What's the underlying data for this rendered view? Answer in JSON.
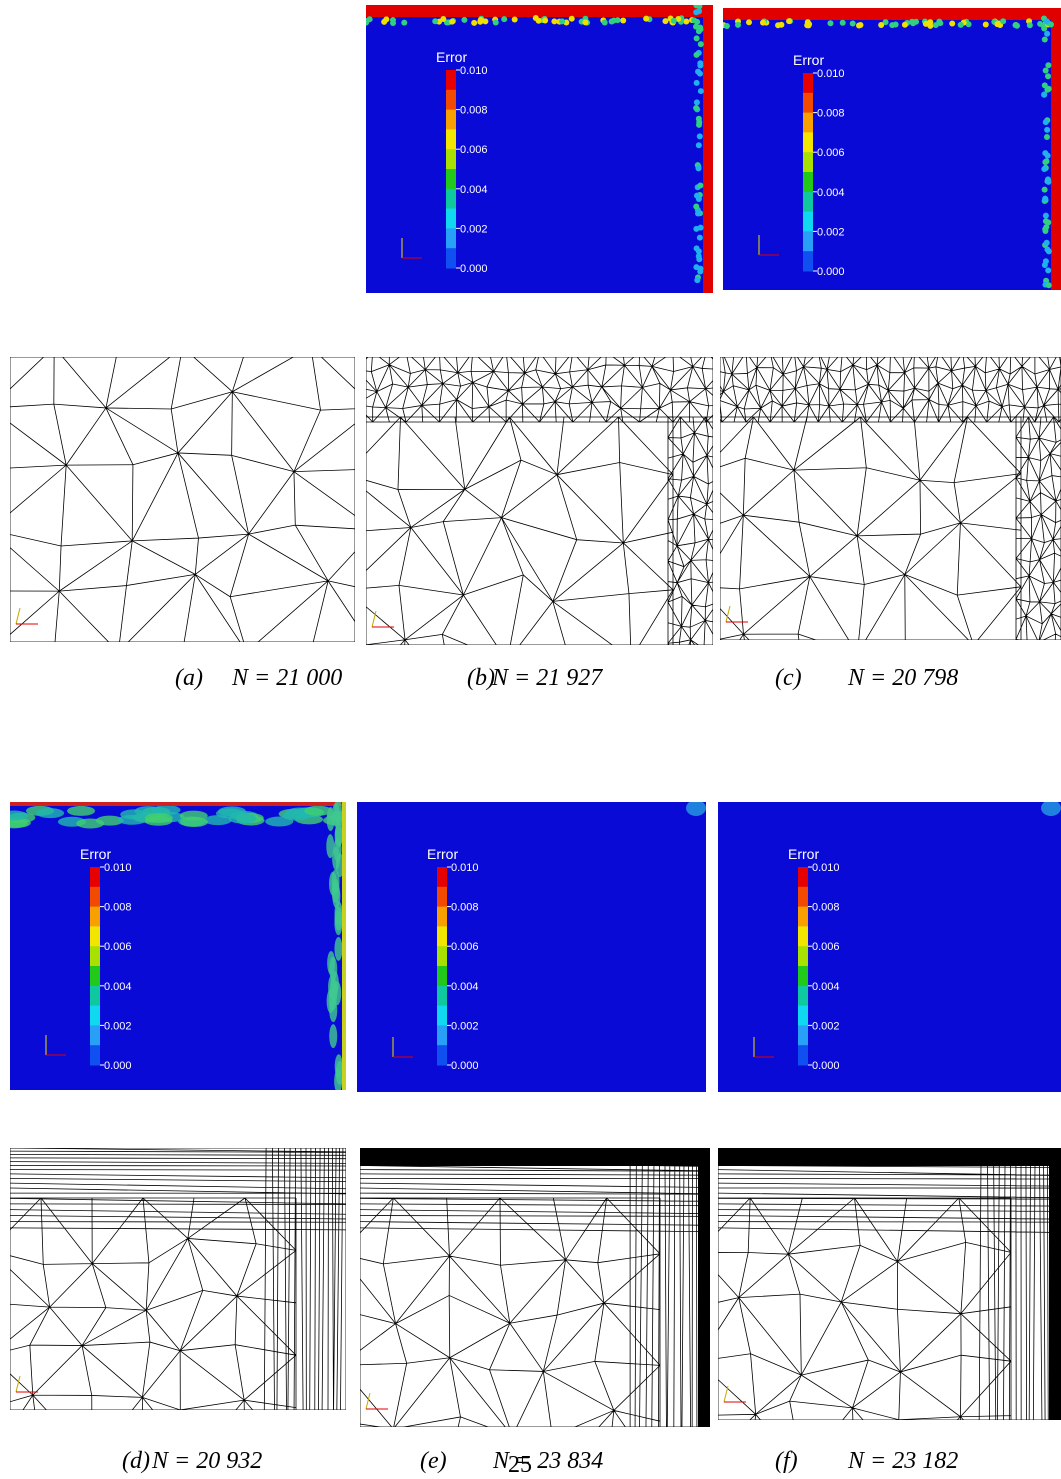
{
  "colorbar": {
    "title": "Error",
    "ticks": [
      "0.010",
      "0.008",
      "0.006",
      "0.004",
      "0.002",
      "0.000"
    ]
  },
  "panels": [
    {
      "label": "(a)",
      "n": "N = 21 000"
    },
    {
      "label": "(b)",
      "n": "N = 21 927"
    },
    {
      "label": "(c)",
      "n": "N = 20 798"
    },
    {
      "label": "(d)",
      "n": "N = 20 932"
    },
    {
      "label": "(e)",
      "n": "N = 23 834"
    },
    {
      "label": "(f)",
      "n": "N = 23 182"
    }
  ],
  "page_number": "25"
}
